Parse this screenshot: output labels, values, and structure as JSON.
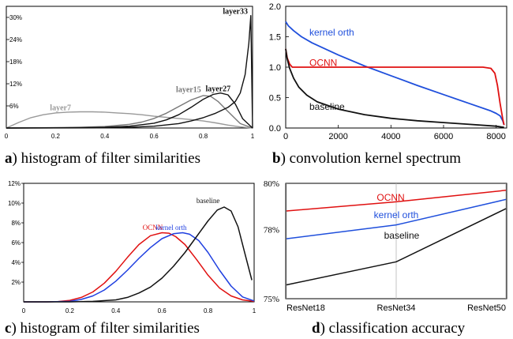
{
  "chart_data": [
    {
      "id": "a",
      "type": "line",
      "caption_letter": "a",
      "caption": ") histogram of filter similarities",
      "xlim": [
        0,
        1
      ],
      "ylim": [
        0,
        33
      ],
      "x_ticks": [
        "0",
        "0.2",
        "0.4",
        "0.6",
        "0.8",
        "1"
      ],
      "y_ticks": [
        {
          "value": 6,
          "label": "6%"
        },
        {
          "value": 12,
          "label": "12%"
        },
        {
          "value": 18,
          "label": "18%"
        },
        {
          "value": 24,
          "label": "24%"
        },
        {
          "value": 30,
          "label": "30%"
        }
      ],
      "series": [
        {
          "name": "layer7",
          "color": "#999999",
          "label_at": [
            0.22,
            4.8
          ],
          "x": [
            0,
            0.05,
            0.1,
            0.15,
            0.2,
            0.25,
            0.3,
            0.35,
            0.4,
            0.45,
            0.5,
            0.55,
            0.6,
            0.65,
            0.7,
            0.75,
            0.8,
            0.85,
            0.9,
            0.95,
            1.0
          ],
          "y": [
            0,
            1.5,
            2.8,
            3.6,
            4.1,
            4.3,
            4.4,
            4.4,
            4.3,
            4.1,
            3.9,
            3.6,
            3.2,
            2.9,
            2.6,
            2.3,
            1.9,
            1.4,
            0.8,
            0.3,
            0
          ]
        },
        {
          "name": "layer15",
          "color": "#777777",
          "label_at": [
            0.74,
            9.8
          ],
          "x": [
            0,
            0.1,
            0.2,
            0.3,
            0.4,
            0.5,
            0.55,
            0.6,
            0.65,
            0.7,
            0.75,
            0.8,
            0.83,
            0.86,
            0.9,
            0.95,
            1.0
          ],
          "y": [
            0,
            0.05,
            0.1,
            0.2,
            0.4,
            1.0,
            1.6,
            2.6,
            4.0,
            5.8,
            7.6,
            8.8,
            8.6,
            7.2,
            4.5,
            1.2,
            0
          ]
        },
        {
          "name": "layer27",
          "color": "#111111",
          "label_at": [
            0.86,
            10.0
          ],
          "bold": true,
          "x": [
            0,
            0.2,
            0.4,
            0.5,
            0.6,
            0.65,
            0.7,
            0.75,
            0.8,
            0.84,
            0.87,
            0.9,
            0.93,
            0.96,
            1.0
          ],
          "y": [
            0,
            0.05,
            0.2,
            0.5,
            1.3,
            2.2,
            3.6,
            5.6,
            7.8,
            9.1,
            9.5,
            9.0,
            6.5,
            2.5,
            0
          ]
        },
        {
          "name": "layer33",
          "color": "#111111",
          "label_at": [
            0.93,
            31.0
          ],
          "bold": true,
          "x": [
            0,
            0.4,
            0.5,
            0.6,
            0.7,
            0.75,
            0.8,
            0.85,
            0.9,
            0.93,
            0.95,
            0.97,
            0.985,
            0.993,
            1.0
          ],
          "y": [
            0,
            0.05,
            0.2,
            0.5,
            1.2,
            1.9,
            2.8,
            4.0,
            5.6,
            7.2,
            9.5,
            14.5,
            23.0,
            30.5,
            0
          ]
        }
      ]
    },
    {
      "id": "b",
      "type": "line",
      "caption_letter": "b",
      "caption": ") convolution kernel spectrum",
      "xlim": [
        0,
        8400
      ],
      "ylim": [
        0,
        2.0
      ],
      "x_ticks": [
        {
          "value": 0,
          "label": "0"
        },
        {
          "value": 2000,
          "label": "2000"
        },
        {
          "value": 4000,
          "label": "4000"
        },
        {
          "value": 6000,
          "label": "6000"
        },
        {
          "value": 8000,
          "label": "8000"
        }
      ],
      "y_ticks": [
        {
          "value": 0,
          "label": "0.0"
        },
        {
          "value": 0.5,
          "label": "0.5"
        },
        {
          "value": 1.0,
          "label": "1.0"
        },
        {
          "value": 1.5,
          "label": "1.5"
        },
        {
          "value": 2.0,
          "label": "2.0"
        }
      ],
      "series": [
        {
          "name": "kernel orth",
          "color": "#1f4fdc",
          "label_at": [
            900,
            1.52
          ],
          "x": [
            0,
            100,
            300,
            600,
            1000,
            2000,
            3000,
            4000,
            5000,
            6000,
            7000,
            7800,
            8000,
            8150,
            8250,
            8300
          ],
          "y": [
            1.75,
            1.68,
            1.6,
            1.5,
            1.4,
            1.2,
            1.02,
            0.86,
            0.7,
            0.55,
            0.4,
            0.28,
            0.24,
            0.2,
            0.12,
            0.05
          ]
        },
        {
          "name": "OCNN",
          "color": "#e01010",
          "label_at": [
            900,
            1.02
          ],
          "x": [
            0,
            60,
            150,
            250,
            400,
            800,
            2000,
            4000,
            6000,
            7500,
            7800,
            7950,
            8050,
            8150,
            8250,
            8300
          ],
          "y": [
            1.3,
            1.15,
            1.05,
            1.0,
            1.0,
            1.0,
            1.0,
            1.0,
            1.0,
            1.0,
            0.98,
            0.9,
            0.7,
            0.4,
            0.15,
            0.05
          ]
        },
        {
          "name": "baseline",
          "color": "#111111",
          "label_at": [
            900,
            0.3
          ],
          "x": [
            0,
            50,
            150,
            300,
            500,
            800,
            1200,
            2000,
            3000,
            4000,
            5000,
            6000,
            7000,
            8000,
            8300
          ],
          "y": [
            1.3,
            1.15,
            0.98,
            0.82,
            0.67,
            0.54,
            0.43,
            0.31,
            0.22,
            0.16,
            0.12,
            0.09,
            0.06,
            0.03,
            0.01
          ]
        }
      ]
    },
    {
      "id": "c",
      "type": "line",
      "caption_letter": "c",
      "caption": ") histogram of filter similarities",
      "xlim": [
        0,
        1
      ],
      "ylim": [
        0,
        12
      ],
      "x_ticks": [
        "0",
        "0.2",
        "0.4",
        "0.6",
        "0.8",
        "1"
      ],
      "y_ticks": [
        {
          "value": 2,
          "label": "2%"
        },
        {
          "value": 4,
          "label": "4%"
        },
        {
          "value": 6,
          "label": "6%"
        },
        {
          "value": 8,
          "label": "8%"
        },
        {
          "value": 10,
          "label": "10%"
        },
        {
          "value": 12,
          "label": "12%"
        }
      ],
      "series": [
        {
          "name": "OCNN",
          "color": "#e01010",
          "label_at": [
            0.56,
            7.3
          ],
          "x": [
            0,
            0.1,
            0.15,
            0.2,
            0.25,
            0.3,
            0.35,
            0.4,
            0.45,
            0.5,
            0.55,
            0.6,
            0.63,
            0.66,
            0.7,
            0.75,
            0.8,
            0.85,
            0.9,
            0.95,
            1.0
          ],
          "y": [
            0,
            0,
            0.03,
            0.15,
            0.45,
            1.0,
            1.9,
            3.1,
            4.5,
            5.8,
            6.7,
            7.0,
            6.95,
            6.6,
            5.8,
            4.3,
            2.7,
            1.4,
            0.6,
            0.2,
            0.05
          ]
        },
        {
          "name": "kernel orth",
          "color": "#1f3fe0",
          "label_at": [
            0.64,
            7.3
          ],
          "x": [
            0,
            0.1,
            0.2,
            0.25,
            0.3,
            0.35,
            0.4,
            0.45,
            0.5,
            0.55,
            0.6,
            0.65,
            0.69,
            0.72,
            0.76,
            0.8,
            0.85,
            0.9,
            0.95,
            1.0
          ],
          "y": [
            0,
            0,
            0.05,
            0.25,
            0.6,
            1.2,
            2.1,
            3.2,
            4.4,
            5.5,
            6.4,
            6.9,
            7.0,
            6.85,
            6.2,
            5.0,
            3.2,
            1.6,
            0.5,
            0.1
          ]
        },
        {
          "name": "baseline",
          "color": "#111111",
          "label_at": [
            0.8,
            10.0
          ],
          "x": [
            0,
            0.2,
            0.3,
            0.4,
            0.45,
            0.5,
            0.55,
            0.6,
            0.65,
            0.7,
            0.75,
            0.8,
            0.84,
            0.87,
            0.9,
            0.93,
            0.96,
            0.99
          ],
          "y": [
            0,
            0,
            0.05,
            0.2,
            0.45,
            0.9,
            1.5,
            2.4,
            3.6,
            5.0,
            6.6,
            8.2,
            9.3,
            9.6,
            9.2,
            7.6,
            4.9,
            2.2
          ]
        }
      ]
    },
    {
      "id": "d",
      "type": "line",
      "caption_letter": "d",
      "caption": ") classification accuracy",
      "categories": [
        "ResNet18",
        "ResNet34",
        "ResNet50"
      ],
      "ylim": [
        75,
        80
      ],
      "y_ticks": [
        {
          "value": 75,
          "label": "75%"
        },
        {
          "value": 78,
          "label": "78%"
        },
        {
          "value": 80,
          "label": "80%"
        }
      ],
      "series": [
        {
          "name": "OCNN",
          "color": "#e01010",
          "label_at": [
            0.95,
            79.25
          ],
          "values": [
            78.8,
            79.2,
            79.7
          ]
        },
        {
          "name": "kernel orth",
          "color": "#1f4fdc",
          "label_at": [
            1.0,
            78.5
          ],
          "values": [
            77.6,
            78.2,
            79.3
          ]
        },
        {
          "name": "baseline",
          "color": "#111111",
          "label_at": [
            1.05,
            77.6
          ],
          "values": [
            75.6,
            76.6,
            78.9
          ]
        }
      ]
    }
  ]
}
